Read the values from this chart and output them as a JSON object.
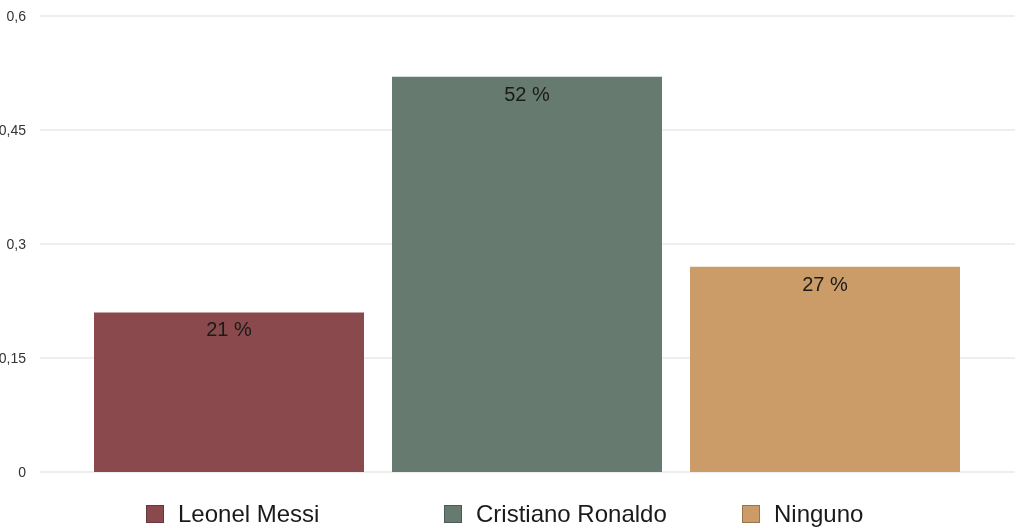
{
  "chart_data": {
    "type": "bar",
    "categories": [
      null,
      null,
      null
    ],
    "series": [
      {
        "name": "Leonel Messi",
        "color": "#8a4a4d",
        "values": [
          0.21,
          null,
          null
        ],
        "value_labels": [
          "21 %",
          null,
          null
        ]
      },
      {
        "name": "Cristiano Ronaldo",
        "color": "#667a70",
        "values": [
          null,
          0.52,
          null
        ],
        "value_labels": [
          null,
          "52 %",
          null
        ]
      },
      {
        "name": "Ninguno",
        "color": "#cc9c68",
        "values": [
          null,
          null,
          0.27
        ],
        "value_labels": [
          null,
          null,
          "27 %"
        ]
      }
    ],
    "ylim": [
      0,
      0.6
    ],
    "yticks": [
      0,
      {
        "value": 0.15,
        "label": "0,15"
      },
      {
        "value": 0.3,
        "label": "0,3"
      },
      {
        "value": 0.45,
        "label": "0,45"
      },
      {
        "value": 0.6,
        "label": "0,6"
      }
    ],
    "grid": "y",
    "legend": "bottom"
  }
}
